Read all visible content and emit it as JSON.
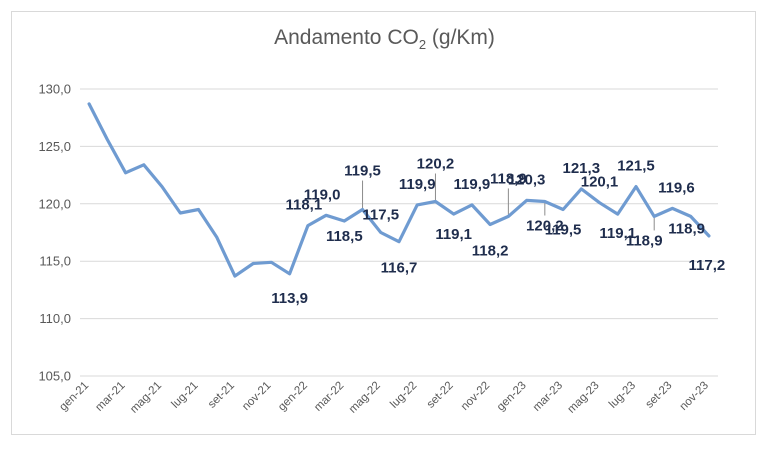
{
  "chart_data": {
    "type": "line",
    "title": {
      "main": "Andamento CO",
      "sub": "2",
      "after": " (g/Km)"
    },
    "xlabel": "",
    "ylabel": "",
    "ylim": [
      105,
      130
    ],
    "yticks": [
      "105,0",
      "110,0",
      "115,0",
      "120,0",
      "125,0",
      "130,0"
    ],
    "grid": true,
    "legend": "none",
    "line_color": "#6f9bd1",
    "label_color": "#1f2d4d",
    "x": [
      "gen-21",
      "feb-21",
      "mar-21",
      "apr-21",
      "mag-21",
      "giu-21",
      "lug-21",
      "ago-21",
      "set-21",
      "ott-21",
      "nov-21",
      "dic-21",
      "gen-22",
      "feb-22",
      "mar-22",
      "apr-22",
      "mag-22",
      "giu-22",
      "lug-22",
      "ago-22",
      "set-22",
      "ott-22",
      "nov-22",
      "dic-22",
      "gen-23",
      "feb-23",
      "mar-23",
      "apr-23",
      "mag-23",
      "giu-23",
      "lug-23",
      "ago-23",
      "set-23",
      "ott-23",
      "nov-23"
    ],
    "xtick_labels": [
      "gen-21",
      "mar-21",
      "mag-21",
      "lug-21",
      "set-21",
      "nov-21",
      "gen-22",
      "mar-22",
      "mag-22",
      "lug-22",
      "set-22",
      "nov-22",
      "gen-23",
      "mar-23",
      "mag-23",
      "lug-23",
      "set-23",
      "nov-23"
    ],
    "series": [
      {
        "values": [
          128.7,
          125.6,
          122.7,
          123.4,
          121.5,
          119.2,
          119.5,
          117.1,
          113.7,
          114.8,
          114.9,
          113.9,
          118.1,
          119.0,
          118.5,
          119.5,
          117.5,
          116.7,
          119.9,
          120.2,
          119.1,
          119.9,
          118.2,
          118.9,
          120.3,
          120.2,
          119.5,
          121.3,
          120.1,
          119.1,
          121.5,
          118.9,
          119.6,
          118.9,
          117.2
        ]
      }
    ],
    "data_labels": [
      {
        "i": 11,
        "text": "113,9"
      },
      {
        "i": 12,
        "text": "118,1"
      },
      {
        "i": 13,
        "text": "119,0"
      },
      {
        "i": 14,
        "text": "118,5"
      },
      {
        "i": 15,
        "text": "119,5"
      },
      {
        "i": 16,
        "text": "117,5"
      },
      {
        "i": 17,
        "text": "116,7"
      },
      {
        "i": 18,
        "text": "119,9"
      },
      {
        "i": 19,
        "text": "120,2"
      },
      {
        "i": 20,
        "text": "119,1"
      },
      {
        "i": 21,
        "text": "119,9"
      },
      {
        "i": 22,
        "text": "118,2"
      },
      {
        "i": 23,
        "text": "118,9"
      },
      {
        "i": 24,
        "text": "120,3"
      },
      {
        "i": 25,
        "text": "120,2"
      },
      {
        "i": 26,
        "text": "119,5"
      },
      {
        "i": 27,
        "text": "121,3"
      },
      {
        "i": 28,
        "text": "120,1"
      },
      {
        "i": 29,
        "text": "119,1"
      },
      {
        "i": 30,
        "text": "121,5"
      },
      {
        "i": 31,
        "text": "118,9"
      },
      {
        "i": 32,
        "text": "119,6"
      },
      {
        "i": 33,
        "text": "118,9"
      },
      {
        "i": 34,
        "text": "117,2"
      }
    ]
  }
}
